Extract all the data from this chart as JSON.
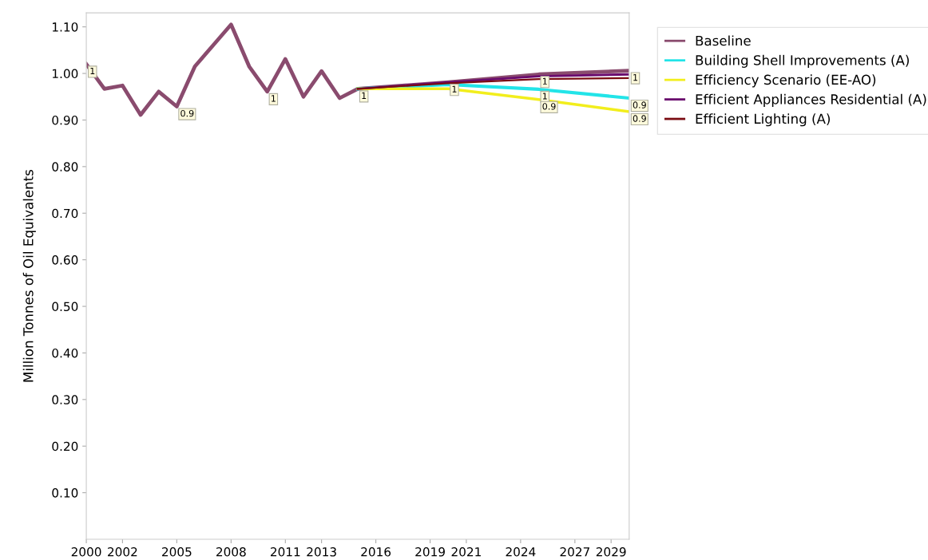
{
  "chart_data": {
    "type": "line",
    "ylabel": "Million Tonnes of Oil Equivalents",
    "xlim": [
      2000,
      2030
    ],
    "xticks": [
      2000,
      2002,
      2005,
      2008,
      2011,
      2013,
      2016,
      2019,
      2021,
      2024,
      2027,
      2029
    ],
    "ylim": [
      0,
      1.13
    ],
    "yticks": [
      {
        "value": 0.1,
        "label": "0.10"
      },
      {
        "value": 0.2,
        "label": "0.20"
      },
      {
        "value": 0.3,
        "label": "0.30"
      },
      {
        "value": 0.4,
        "label": "0.40"
      },
      {
        "value": 0.5,
        "label": "0.50"
      },
      {
        "value": 0.6,
        "label": "0.60"
      },
      {
        "value": 0.7,
        "label": "0.70"
      },
      {
        "value": 0.8,
        "label": "0.80"
      },
      {
        "value": 0.9,
        "label": "0.90"
      },
      {
        "value": 1.0,
        "label": "1.00"
      },
      {
        "value": 1.1,
        "label": "1.10"
      }
    ],
    "grid": false,
    "legend": "top right",
    "marker": "none",
    "line_style": "solid",
    "series": [
      {
        "name": "Baseline",
        "color": "#8a4b6e",
        "x": [
          2000,
          2001,
          2002,
          2003,
          2004,
          2005,
          2006,
          2007,
          2008,
          2009,
          2010,
          2011,
          2012,
          2013,
          2014,
          2015,
          2020,
          2025,
          2030
        ],
        "values": [
          1.02,
          0.967,
          0.974,
          0.911,
          0.961,
          0.929,
          1.015,
          1.06,
          1.105,
          1.015,
          0.961,
          1.031,
          0.95,
          1.005,
          0.947,
          0.967,
          0.981,
          0.998,
          1.006
        ],
        "value_labels": [
          "1",
          null,
          null,
          null,
          null,
          "0.9",
          null,
          null,
          null,
          null,
          "1",
          null,
          null,
          null,
          null,
          "1",
          "1",
          "1",
          "1"
        ]
      },
      {
        "name": "Building Shell Improvements (A)",
        "color": "#22e4e8",
        "x": [
          2015,
          2020,
          2025,
          2030
        ],
        "values": [
          0.967,
          0.976,
          0.966,
          0.947
        ],
        "value_labels": [
          null,
          null,
          "1",
          "0.9"
        ]
      },
      {
        "name": "Efficiency Scenario (EE-AO)",
        "color": "#f2ee1c",
        "x": [
          2015,
          2020,
          2025,
          2030
        ],
        "values": [
          0.967,
          0.967,
          0.944,
          0.918
        ],
        "value_labels": [
          null,
          null,
          "0.9",
          "0.9"
        ]
      },
      {
        "name": "Efficient Appliances Residential (A)",
        "color": "#6a0a6e",
        "x": [
          2015,
          2020,
          2025,
          2030
        ],
        "values": [
          0.967,
          0.981,
          0.994,
          0.998
        ]
      },
      {
        "name": "Efficient Lighting (A)",
        "color": "#7a0c12",
        "x": [
          2015,
          2020,
          2025,
          2030
        ],
        "values": [
          0.967,
          0.979,
          0.988,
          0.99
        ]
      }
    ]
  }
}
